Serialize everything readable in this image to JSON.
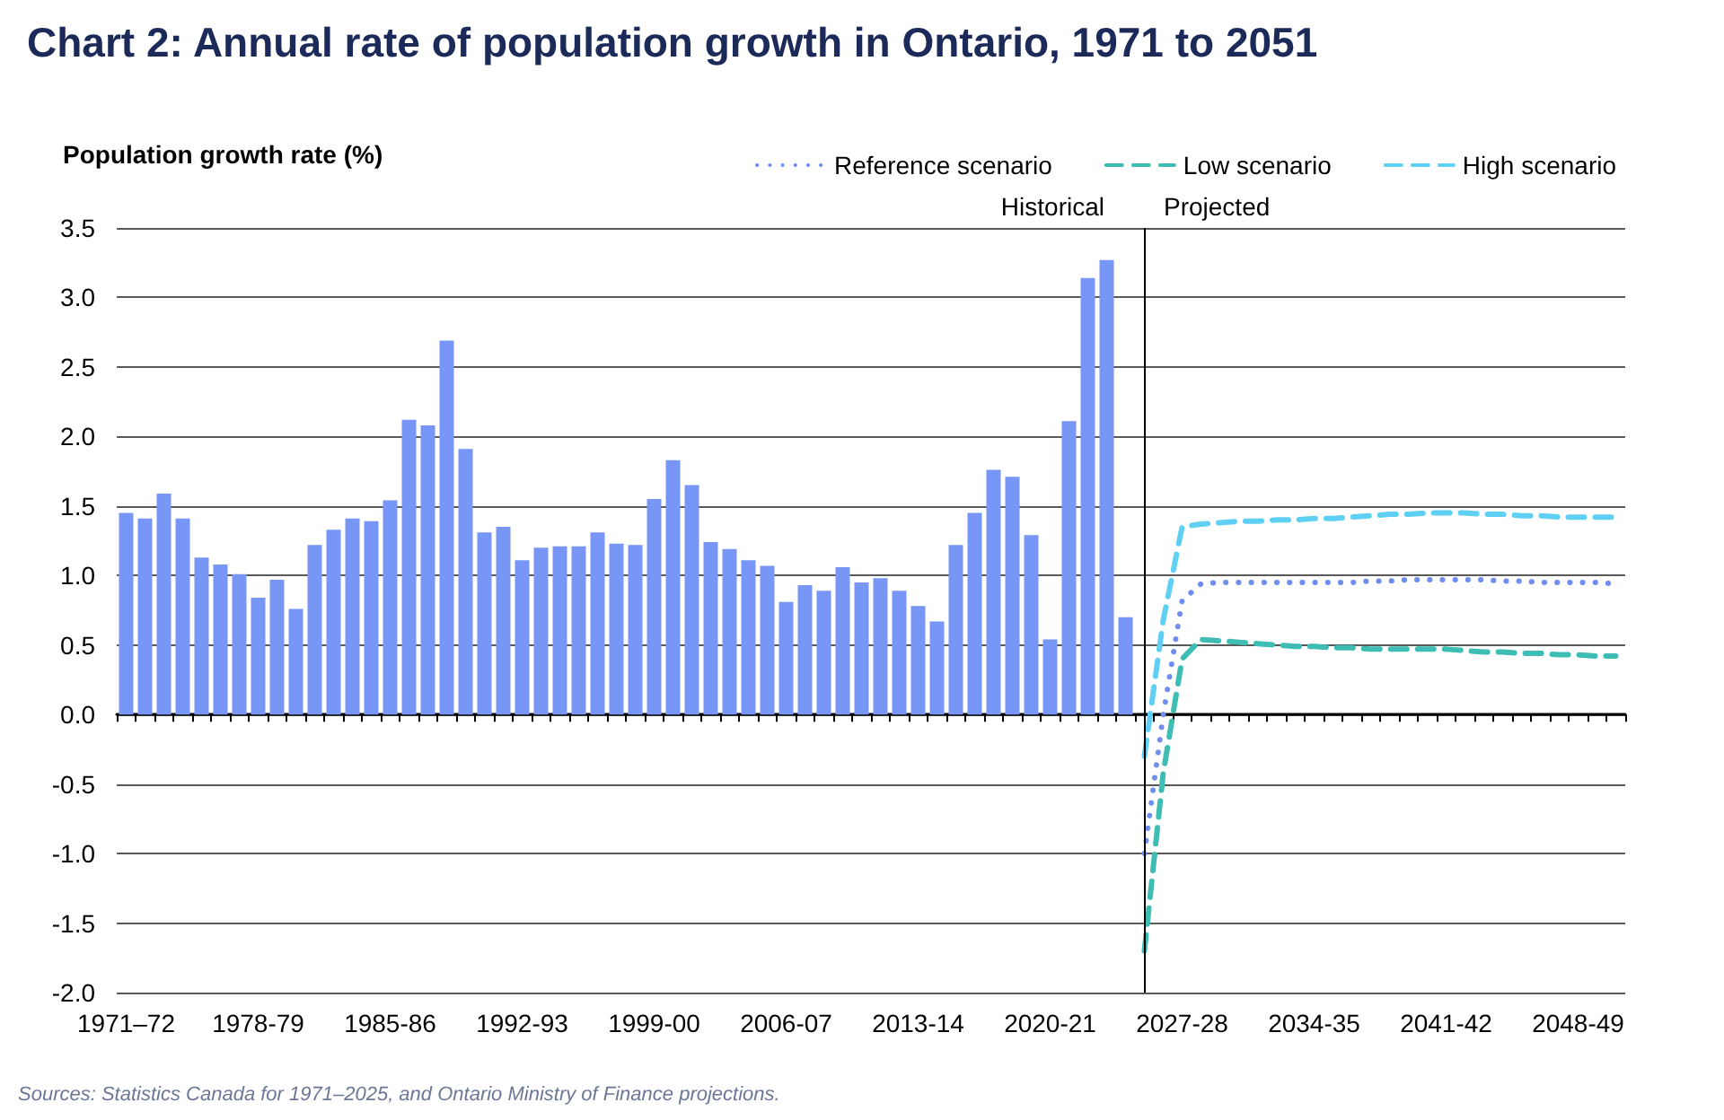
{
  "chart_data": {
    "type": "bar",
    "title": "Chart 2: Annual rate of population growth in Ontario, 1971 to 2051",
    "ylabel": "Population growth rate (%)",
    "annotations": [
      "Historical",
      "Projected",
      "Sources: Statistics Canada for 1971–2025, and Ontario Ministry of Finance projections."
    ],
    "categories": [
      "1971–72",
      null,
      null,
      null,
      null,
      null,
      null,
      "1978-79",
      null,
      null,
      null,
      null,
      null,
      null,
      "1985-86",
      null,
      null,
      null,
      null,
      null,
      null,
      "1992-93",
      null,
      null,
      null,
      null,
      null,
      null,
      "1999-00",
      null,
      null,
      null,
      null,
      null,
      null,
      "2006-07",
      null,
      null,
      null,
      null,
      null,
      null,
      "2013-14",
      null,
      null,
      null,
      null,
      null,
      null,
      "2020-21",
      null,
      null,
      null,
      null,
      null,
      null,
      "2027-28",
      null,
      null,
      null,
      null,
      null,
      null,
      "2034-35",
      null,
      null,
      null,
      null,
      null,
      null,
      "2041-42",
      null,
      null,
      null,
      null,
      null,
      null,
      "2048-49",
      null,
      null
    ],
    "ylim": [
      -2,
      3.5
    ],
    "yticks": [
      {
        "value": -2,
        "label": "-2.0"
      },
      -1.5,
      {
        "value": -1,
        "label": "-1.0"
      },
      -0.5,
      {
        "value": 0,
        "label": "0.0"
      },
      0.5,
      {
        "value": 1,
        "label": "1.0"
      },
      1.5,
      {
        "value": 2,
        "label": "2.0"
      },
      2.5,
      {
        "value": 3,
        "label": "3.0"
      },
      3.5
    ],
    "grid": "y",
    "legend": "top right",
    "series": [
      {
        "color": "#7896f5",
        "values": [
          1.45,
          1.41,
          1.59,
          1.41,
          1.13,
          1.08,
          1.01,
          0.84,
          0.97,
          0.76,
          1.22,
          1.33,
          1.41,
          1.39,
          1.54,
          2.12,
          2.08,
          2.69,
          1.91,
          1.31,
          1.35,
          1.11,
          1.2,
          1.21,
          1.21,
          1.31,
          1.23,
          1.22,
          1.55,
          1.83,
          1.65,
          1.24,
          1.19,
          1.11,
          1.07,
          0.81,
          0.93,
          0.89,
          1.06,
          0.95,
          0.98,
          0.89,
          0.78,
          0.67,
          1.22,
          1.45,
          1.76,
          1.71,
          1.29,
          0.54,
          2.11,
          3.14,
          3.27,
          0.7,
          null,
          null,
          null,
          null,
          null,
          null,
          null,
          null,
          null,
          null,
          null,
          null,
          null,
          null,
          null,
          null,
          null,
          null,
          null,
          null,
          null,
          null,
          null,
          null,
          null,
          null
        ]
      },
      {
        "type": "line",
        "name": "Reference scenario",
        "color": "#6f8ef0",
        "line_style": "dotted",
        "values": [
          null,
          null,
          null,
          null,
          null,
          null,
          null,
          null,
          null,
          null,
          null,
          null,
          null,
          null,
          null,
          null,
          null,
          null,
          null,
          null,
          null,
          null,
          null,
          null,
          null,
          null,
          null,
          null,
          null,
          null,
          null,
          null,
          null,
          null,
          null,
          null,
          null,
          null,
          null,
          null,
          null,
          null,
          null,
          null,
          null,
          null,
          null,
          null,
          null,
          null,
          null,
          null,
          null,
          null,
          -1.0,
          0.0,
          0.82,
          0.94,
          0.95,
          0.95,
          0.95,
          0.95,
          0.95,
          0.95,
          0.95,
          0.95,
          0.96,
          0.96,
          0.97,
          0.97,
          0.97,
          0.97,
          0.97,
          0.96,
          0.96,
          0.95,
          0.95,
          0.95,
          0.95,
          0.94
        ]
      },
      {
        "type": "line",
        "name": "Low scenario",
        "color": "#3dbdb3",
        "line_style": "dashed",
        "values": [
          null,
          null,
          null,
          null,
          null,
          null,
          null,
          null,
          null,
          null,
          null,
          null,
          null,
          null,
          null,
          null,
          null,
          null,
          null,
          null,
          null,
          null,
          null,
          null,
          null,
          null,
          null,
          null,
          null,
          null,
          null,
          null,
          null,
          null,
          null,
          null,
          null,
          null,
          null,
          null,
          null,
          null,
          null,
          null,
          null,
          null,
          null,
          null,
          null,
          null,
          null,
          null,
          null,
          null,
          -1.7,
          -0.42,
          0.4,
          0.54,
          0.53,
          0.52,
          0.51,
          0.5,
          0.49,
          0.49,
          0.48,
          0.48,
          0.47,
          0.47,
          0.47,
          0.47,
          0.47,
          0.46,
          0.45,
          0.45,
          0.44,
          0.44,
          0.43,
          0.43,
          0.42,
          0.42
        ]
      },
      {
        "type": "line",
        "name": "High scenario",
        "color": "#5fd0f3",
        "line_style": "dashed",
        "values": [
          null,
          null,
          null,
          null,
          null,
          null,
          null,
          null,
          null,
          null,
          null,
          null,
          null,
          null,
          null,
          null,
          null,
          null,
          null,
          null,
          null,
          null,
          null,
          null,
          null,
          null,
          null,
          null,
          null,
          null,
          null,
          null,
          null,
          null,
          null,
          null,
          null,
          null,
          null,
          null,
          null,
          null,
          null,
          null,
          null,
          null,
          null,
          null,
          null,
          null,
          null,
          null,
          null,
          null,
          -0.3,
          0.68,
          1.35,
          1.37,
          1.38,
          1.39,
          1.39,
          1.4,
          1.4,
          1.41,
          1.41,
          1.42,
          1.43,
          1.44,
          1.44,
          1.45,
          1.45,
          1.45,
          1.44,
          1.44,
          1.43,
          1.43,
          1.42,
          1.42,
          1.42,
          1.42
        ]
      }
    ]
  }
}
